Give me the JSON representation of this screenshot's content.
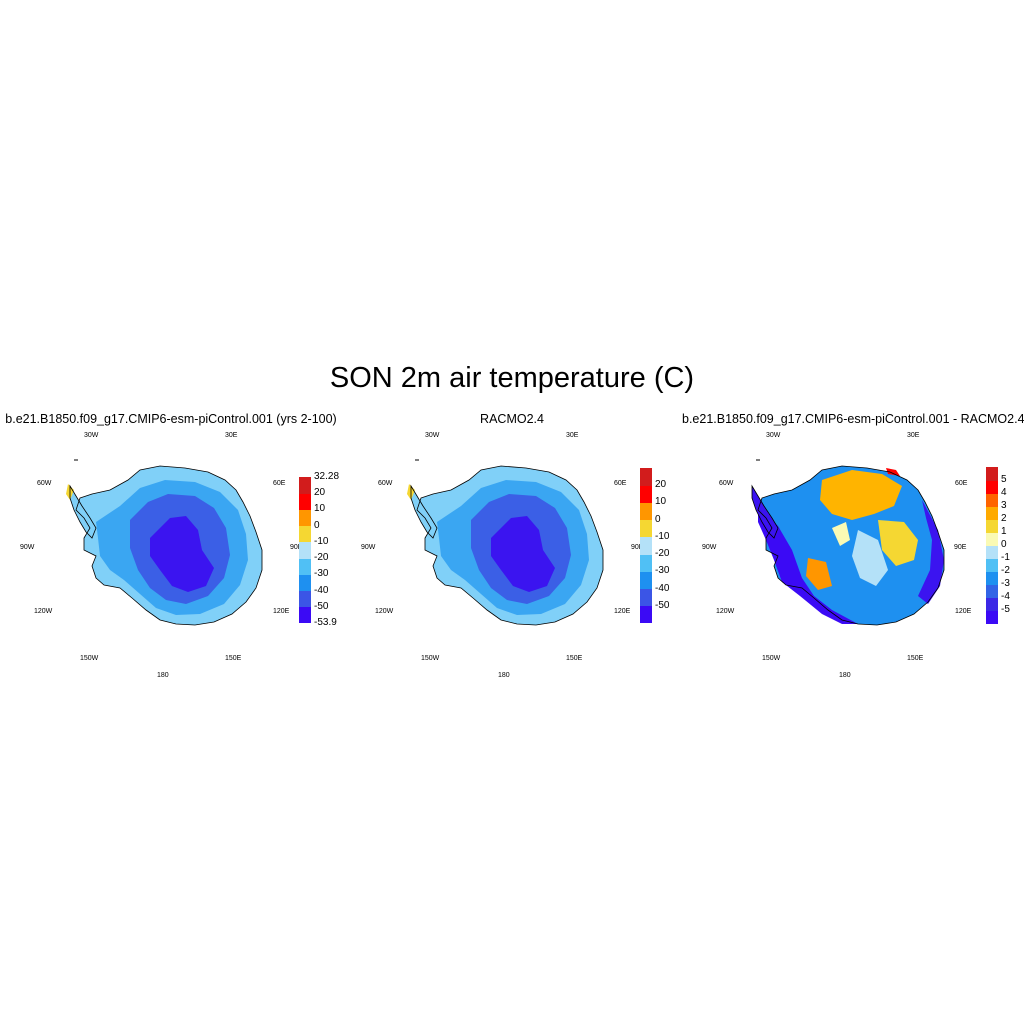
{
  "figure": {
    "title": "SON 2m air temperature (C)"
  },
  "panels": [
    {
      "id": "model",
      "title": "b.e21.B1850.f09_g17.CMIP6-esm-piControl.001 (yrs 2-100)",
      "lon_labels": {
        "w30": "30W",
        "e30": "30E",
        "w60": "60W",
        "e60": "60E",
        "w90": "90W",
        "e90": "90E",
        "w120": "120W",
        "e120": "120E",
        "w150": "150W",
        "e150": "150E",
        "s180": "180"
      },
      "colorbar": {
        "colors": [
          "#3b0af5",
          "#3b55e6",
          "#1e90f0",
          "#50c0f5",
          "#b4e1f8",
          "#f5d732",
          "#ff9600",
          "#ff0000",
          "#d21c1c"
        ],
        "labels": [
          "-53.9",
          "-50",
          "-40",
          "-30",
          "-20",
          "-10",
          "0",
          "10",
          "20",
          "32.28"
        ]
      },
      "map_fields": [
        "interior-cold",
        "plateau",
        "slope",
        "coast-warm"
      ]
    },
    {
      "id": "obs",
      "title": "RACMO2.4",
      "lon_labels": {
        "w30": "30W",
        "e30": "30E",
        "w60": "60W",
        "e60": "60E",
        "w90": "90W",
        "e90": "90E",
        "w120": "120W",
        "e120": "120E",
        "w150": "150W",
        "e150": "150E",
        "s180": "180"
      },
      "colorbar": {
        "colors": [
          "#3b0af5",
          "#3b55e6",
          "#1e90f0",
          "#50c0f5",
          "#b4e1f8",
          "#f5d732",
          "#ff9600",
          "#ff0000",
          "#d21c1c"
        ],
        "labels": [
          "-50",
          "-40",
          "-30",
          "-20",
          "-10",
          "0",
          "10",
          "20"
        ]
      },
      "map_fields": [
        "interior-cold",
        "plateau",
        "slope",
        "coast-warm"
      ]
    },
    {
      "id": "diff",
      "title": "b.e21.B1850.f09_g17.CMIP6-esm-piControl.001 - RACMO2.4",
      "lon_labels": {
        "w30": "30W",
        "e30": "30E",
        "w60": "60W",
        "e60": "60E",
        "w90": "90W",
        "e90": "90E",
        "w120": "120W",
        "e120": "120E",
        "w150": "150W",
        "e150": "150E",
        "s180": "180"
      },
      "colorbar": {
        "colors": [
          "#3b0af5",
          "#3b28e6",
          "#3264e6",
          "#1e90f0",
          "#50c0f5",
          "#b4e1f8",
          "#fafab4",
          "#f5d732",
          "#ffaa00",
          "#ff6400",
          "#ff0000",
          "#d21c1c"
        ],
        "labels": [
          "-5",
          "-4",
          "-3",
          "-2",
          "-1",
          "0",
          "1",
          "2",
          "3",
          "4",
          "5"
        ]
      },
      "map_fields": [
        "diff-pattern"
      ]
    }
  ]
}
